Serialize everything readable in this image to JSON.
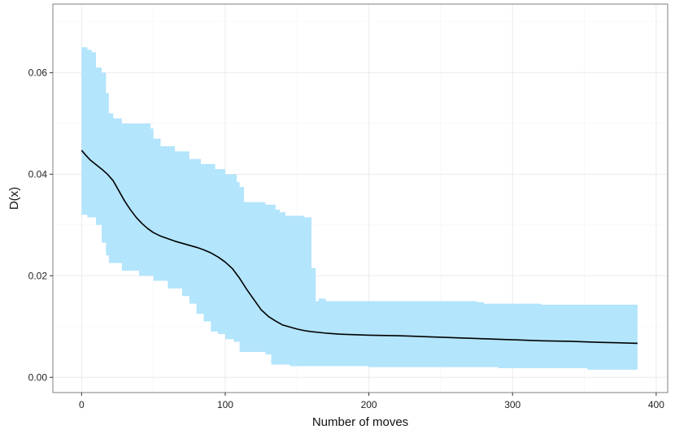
{
  "chart_data": {
    "type": "line",
    "title": "",
    "xlabel": "Number of moves",
    "ylabel": "D(x)",
    "xlim": [
      -20,
      408
    ],
    "ylim": [
      -0.003,
      0.0735
    ],
    "x_ticks": [
      0,
      100,
      200,
      300,
      400
    ],
    "y_ticks": [
      0.0,
      0.02,
      0.04,
      0.06
    ],
    "x_tick_labels": [
      "0",
      "100",
      "200",
      "300",
      "400"
    ],
    "y_tick_labels": [
      "0.00",
      "0.02",
      "0.04",
      "0.06"
    ],
    "grid": true,
    "legend": "none",
    "colors": {
      "band": "#b3e5fc",
      "line": "#000000",
      "grid": "#ebebeb",
      "border": "#7f7f7f"
    },
    "series": [
      {
        "kind": "mean",
        "x": [
          0,
          3,
          6,
          10,
          14,
          18,
          22,
          26,
          30,
          34,
          38,
          42,
          46,
          50,
          55,
          60,
          65,
          70,
          75,
          80,
          85,
          90,
          95,
          100,
          105,
          110,
          115,
          120,
          125,
          130,
          135,
          140,
          145,
          150,
          155,
          160,
          170,
          180,
          190,
          200,
          220,
          240,
          260,
          280,
          300,
          320,
          340,
          360,
          387
        ],
        "y": [
          0.0447,
          0.0437,
          0.0428,
          0.0419,
          0.041,
          0.04,
          0.0387,
          0.0367,
          0.0347,
          0.033,
          0.0315,
          0.0303,
          0.0293,
          0.0285,
          0.0278,
          0.0273,
          0.0268,
          0.0264,
          0.026,
          0.0256,
          0.0251,
          0.0245,
          0.0237,
          0.0227,
          0.0214,
          0.0195,
          0.0173,
          0.0153,
          0.0133,
          0.012,
          0.0111,
          0.0103,
          0.0099,
          0.0095,
          0.0092,
          0.009,
          0.0087,
          0.0085,
          0.0084,
          0.0083,
          0.0082,
          0.008,
          0.0078,
          0.0076,
          0.0074,
          0.0072,
          0.0071,
          0.0069,
          0.0067
        ]
      },
      {
        "kind": "band_upper",
        "x": [
          0,
          4,
          4,
          7,
          7,
          10,
          10,
          14,
          14,
          17,
          17,
          19,
          19,
          22,
          22,
          28,
          28,
          48,
          48,
          50,
          50,
          55,
          55,
          65,
          65,
          75,
          75,
          83,
          83,
          93,
          93,
          100,
          100,
          108,
          108,
          110,
          110,
          113,
          113,
          128,
          128,
          135,
          135,
          138,
          138,
          142,
          142,
          155,
          155,
          160,
          160,
          163,
          163,
          165,
          165,
          170,
          170,
          275,
          275,
          280,
          280,
          320,
          320,
          387
        ],
        "y": [
          0.065,
          0.065,
          0.0645,
          0.0645,
          0.064,
          0.064,
          0.061,
          0.061,
          0.06,
          0.06,
          0.056,
          0.056,
          0.052,
          0.052,
          0.051,
          0.051,
          0.05,
          0.05,
          0.049,
          0.049,
          0.047,
          0.047,
          0.0455,
          0.0455,
          0.0445,
          0.0445,
          0.043,
          0.043,
          0.042,
          0.042,
          0.041,
          0.041,
          0.04,
          0.04,
          0.0385,
          0.0385,
          0.0375,
          0.0375,
          0.0345,
          0.0345,
          0.034,
          0.034,
          0.033,
          0.033,
          0.0325,
          0.0325,
          0.0318,
          0.0318,
          0.0315,
          0.0315,
          0.0215,
          0.0215,
          0.015,
          0.015,
          0.0155,
          0.0155,
          0.015,
          0.015,
          0.0148,
          0.0148,
          0.0145,
          0.0145,
          0.0143,
          0.0143
        ]
      },
      {
        "kind": "band_lower",
        "x": [
          0,
          4,
          4,
          10,
          10,
          14,
          14,
          17,
          17,
          19,
          19,
          28,
          28,
          40,
          40,
          50,
          50,
          60,
          60,
          70,
          70,
          75,
          75,
          80,
          80,
          85,
          85,
          90,
          90,
          95,
          95,
          100,
          100,
          106,
          106,
          110,
          110,
          128,
          128,
          132,
          132,
          145,
          145,
          200,
          200,
          290,
          290,
          352,
          352,
          387
        ],
        "y": [
          0.032,
          0.032,
          0.0315,
          0.0315,
          0.03,
          0.03,
          0.0265,
          0.0265,
          0.024,
          0.024,
          0.0225,
          0.0225,
          0.021,
          0.021,
          0.02,
          0.02,
          0.019,
          0.019,
          0.0175,
          0.0175,
          0.016,
          0.016,
          0.0145,
          0.0145,
          0.0125,
          0.0125,
          0.011,
          0.011,
          0.009,
          0.009,
          0.0085,
          0.0085,
          0.0075,
          0.0075,
          0.007,
          0.007,
          0.005,
          0.005,
          0.0045,
          0.0045,
          0.0025,
          0.0025,
          0.0022,
          0.0022,
          0.002,
          0.002,
          0.0018,
          0.0018,
          0.0015,
          0.0015
        ]
      }
    ]
  }
}
